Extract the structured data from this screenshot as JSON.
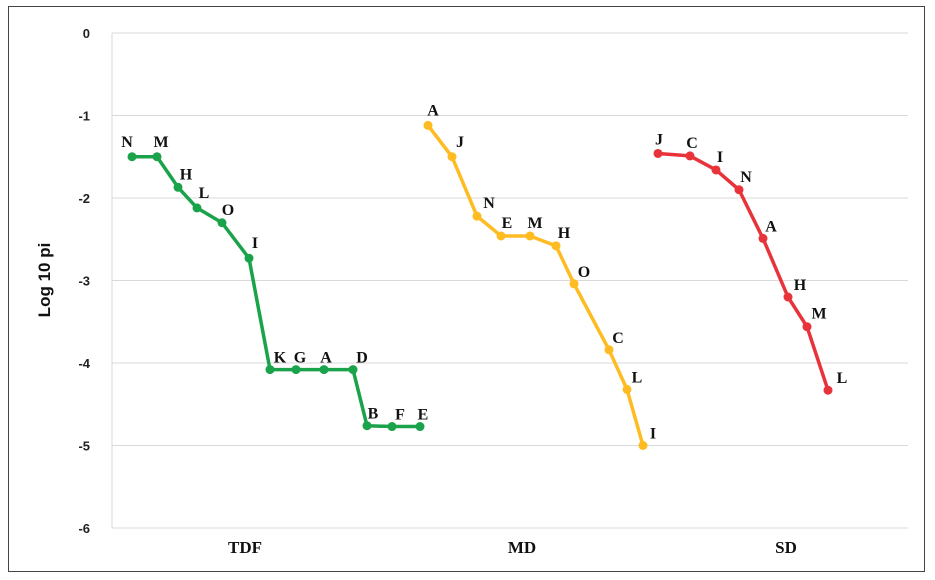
{
  "chart_data": {
    "type": "line",
    "ylabel": "Log 10 pi",
    "ylim": [
      -6,
      0
    ],
    "yticks": [
      "0",
      "-1",
      "-2",
      "-3",
      "-4",
      "-5",
      "-6"
    ],
    "grid": true,
    "categories": [
      "TDF",
      "MD",
      "SD"
    ],
    "series": [
      {
        "group": "TDF",
        "color": "#1aa34a",
        "points": [
          {
            "label": "N",
            "y": -1.5
          },
          {
            "label": "M",
            "y": -1.5
          },
          {
            "label": "H",
            "y": -1.87
          },
          {
            "label": "L",
            "y": -2.12
          },
          {
            "label": "O",
            "y": -2.3
          },
          {
            "label": "I",
            "y": -2.73
          },
          {
            "label": "K",
            "y": -4.08
          },
          {
            "label": "G",
            "y": -4.08
          },
          {
            "label": "A",
            "y": -4.08
          },
          {
            "label": "D",
            "y": -4.08
          },
          {
            "label": "B",
            "y": -4.76
          },
          {
            "label": "F",
            "y": -4.77
          },
          {
            "label": "E",
            "y": -4.77
          }
        ]
      },
      {
        "group": "MD",
        "color": "#ffbb22",
        "points": [
          {
            "label": "A",
            "y": -1.12
          },
          {
            "label": "J",
            "y": -1.5
          },
          {
            "label": "N",
            "y": -2.22
          },
          {
            "label": "E",
            "y": -2.46
          },
          {
            "label": "M",
            "y": -2.46
          },
          {
            "label": "H",
            "y": -2.58
          },
          {
            "label": "O",
            "y": -3.04
          },
          {
            "label": "C",
            "y": -3.84
          },
          {
            "label": "L",
            "y": -4.32
          },
          {
            "label": "I",
            "y": -5.0
          }
        ]
      },
      {
        "group": "SD",
        "color": "#e8333a",
        "points": [
          {
            "label": "J",
            "y": -1.46
          },
          {
            "label": "C",
            "y": -1.49
          },
          {
            "label": "I",
            "y": -1.66
          },
          {
            "label": "N",
            "y": -1.9
          },
          {
            "label": "A",
            "y": -2.49
          },
          {
            "label": "H",
            "y": -3.2
          },
          {
            "label": "M",
            "y": -3.56
          },
          {
            "label": "L",
            "y": -4.33
          }
        ]
      }
    ]
  }
}
